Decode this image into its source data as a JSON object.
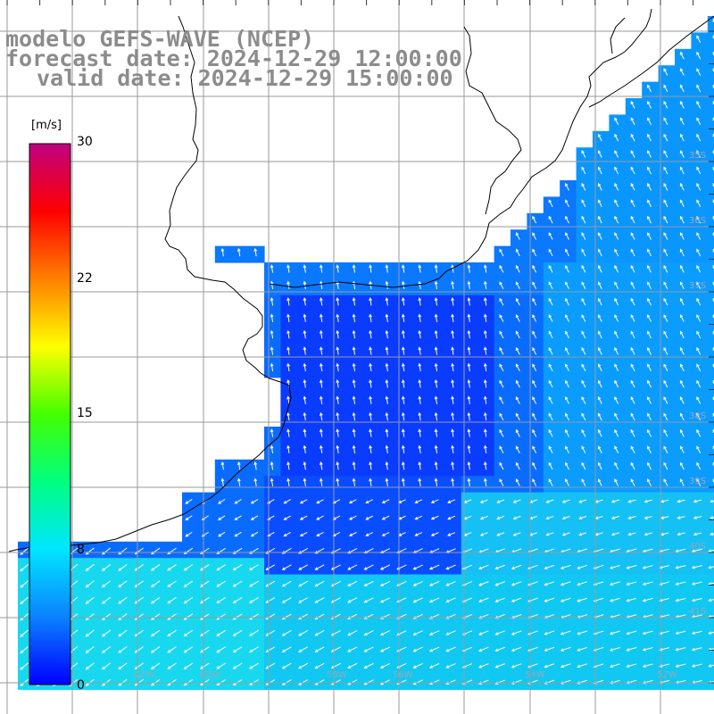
{
  "title": {
    "model": "modelo GEFS-WAVE (NCEP)",
    "forecast": "forecast date: 2024-12-29 12:00:00",
    "valid": "valid date: 2024-12-29 15:00:00"
  },
  "colorbar": {
    "unit": "[m/s]",
    "range": [
      0,
      30
    ],
    "tick_labels": [
      "30",
      "22",
      "15",
      "8",
      "0"
    ],
    "tick_values": [
      30,
      22,
      15,
      8,
      0
    ],
    "colors": [
      "#0000ff",
      "#0a82ff",
      "#00e6ff",
      "#00ff80",
      "#44ff00",
      "#ffff00",
      "#ff8000",
      "#ff0000",
      "#c00080"
    ]
  },
  "map": {
    "variable": "wind speed",
    "units": "m/s",
    "land_color": "#ffffff",
    "coast_color": "#000000",
    "grid_color": "#9a9a9a",
    "arrow_color": "#ffffff",
    "lat_labels": [
      "35S",
      "36S",
      "37S",
      "38S",
      "39S",
      "40S",
      "41S"
    ],
    "lon_labels": [
      "62W",
      "60W",
      "58W",
      "56W",
      "54W",
      "52W"
    ]
  }
}
